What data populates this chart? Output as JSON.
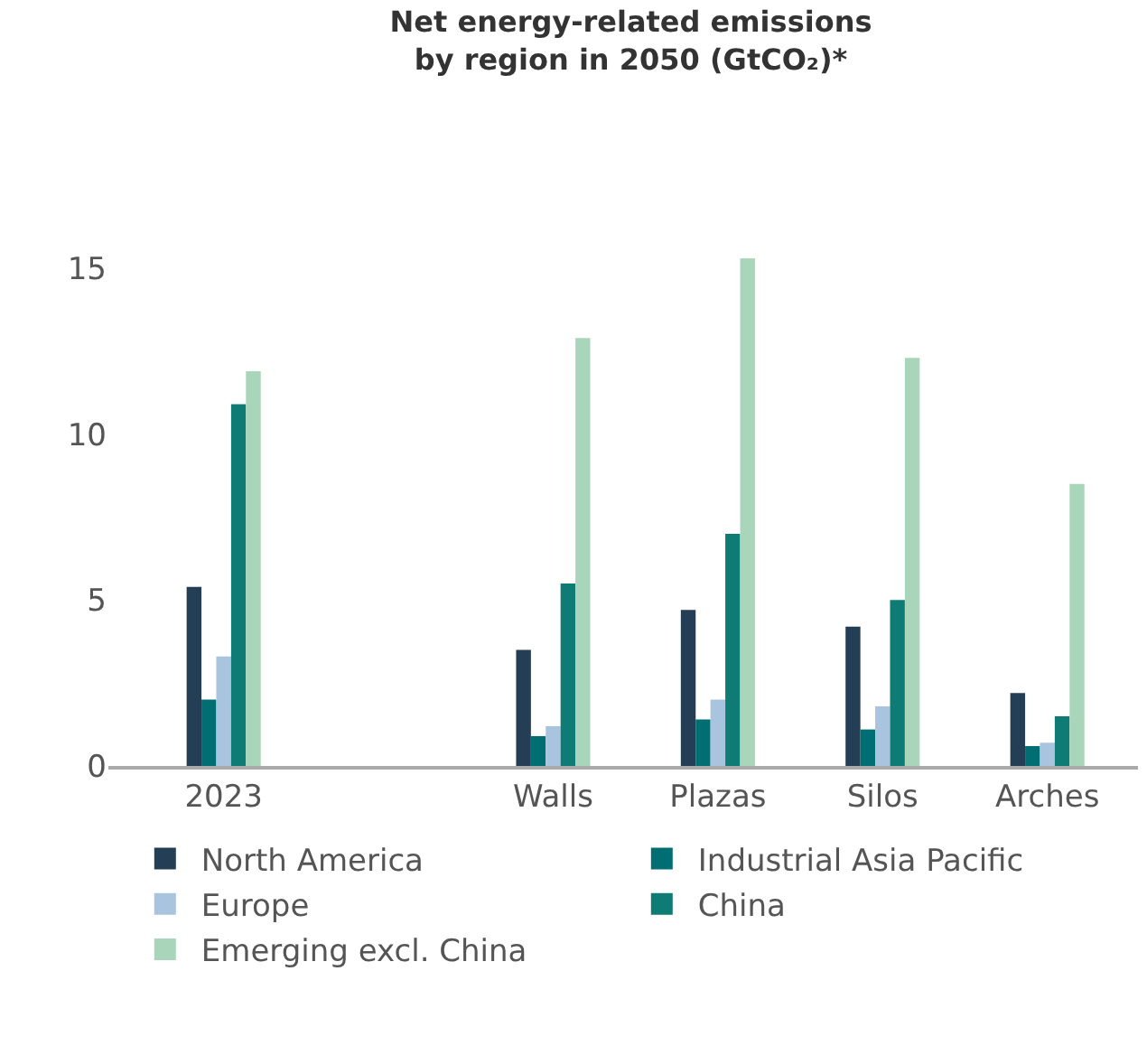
{
  "chart_data": {
    "type": "bar",
    "title": "Net energy-related emissions\nby region in 2050 (GtCO₂)*",
    "categories": [
      "2023",
      null,
      "Walls",
      "Plazas",
      "Silos",
      "Arches"
    ],
    "series": [
      {
        "name": "North America",
        "color": "#243f55",
        "values": [
          5.4,
          null,
          3.5,
          4.7,
          4.2,
          2.2
        ]
      },
      {
        "name": "Industrial Asia Pacific",
        "color": "#006e72",
        "values": [
          2.0,
          null,
          0.9,
          1.4,
          1.1,
          0.6
        ]
      },
      {
        "name": "Europe",
        "color": "#a9c4de",
        "values": [
          3.3,
          null,
          1.2,
          2.0,
          1.8,
          0.7
        ]
      },
      {
        "name": "China",
        "color": "#0e7b74",
        "values": [
          10.9,
          null,
          5.5,
          7.0,
          5.0,
          1.5
        ]
      },
      {
        "name": "Emerging excl. China",
        "color": "#a9d6ba",
        "values": [
          11.9,
          null,
          12.9,
          15.3,
          12.3,
          8.5
        ]
      }
    ],
    "ylim": [
      0,
      15.3
    ],
    "yticks": [
      0,
      5,
      10,
      15
    ],
    "grid": false,
    "legend": "bottom"
  }
}
